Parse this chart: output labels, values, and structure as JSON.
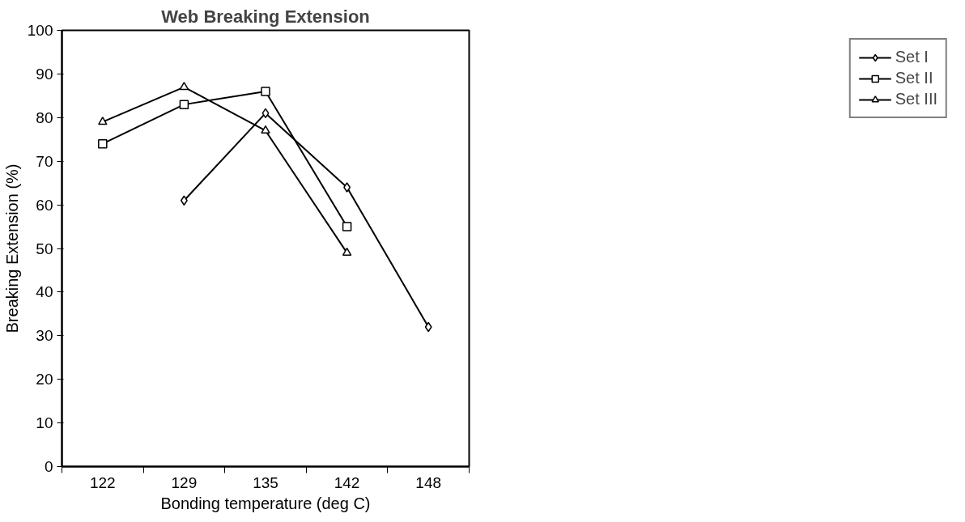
{
  "chart_data": {
    "type": "line",
    "title": "Web Breaking Extension",
    "xlabel": "Bonding temperature (deg C)",
    "ylabel": "Breaking Extension (%)",
    "categories": [
      "122",
      "129",
      "135",
      "142",
      "148"
    ],
    "series": [
      {
        "name": "Set I",
        "color": "#000000",
        "marker": "diamond",
        "values": [
          null,
          61,
          81,
          64,
          32
        ]
      },
      {
        "name": "Set II",
        "color": "#000000",
        "marker": "square",
        "values": [
          74,
          83,
          86,
          55,
          null
        ]
      },
      {
        "name": "Set III",
        "color": "#000000",
        "marker": "triangle",
        "values": [
          79,
          87,
          77,
          49,
          null
        ]
      }
    ],
    "ylim": [
      0,
      100
    ],
    "yticks": [
      0,
      10,
      20,
      30,
      40,
      50,
      60,
      70,
      80,
      90,
      100
    ],
    "grid": false,
    "legend": "right",
    "line_style": "solid"
  }
}
